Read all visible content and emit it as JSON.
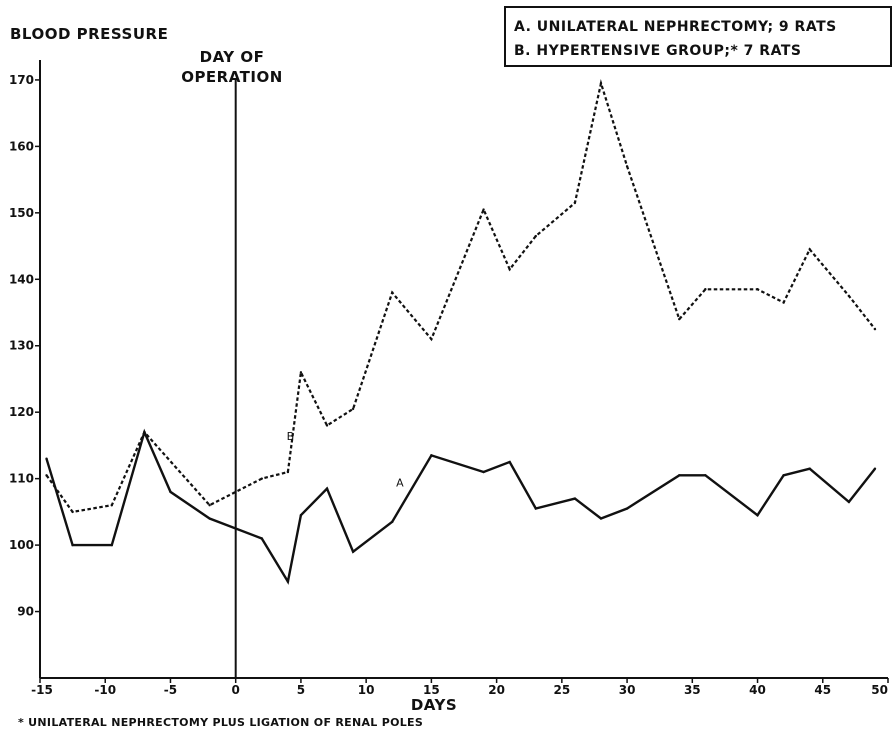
{
  "chart_data": {
    "type": "line",
    "ylabel": "BLOOD PRESSURE",
    "xlabel": "DAYS",
    "xlim": [
      -15,
      50
    ],
    "ylim": [
      80,
      173
    ],
    "x_ticks": [
      -15,
      -10,
      -5,
      0,
      5,
      10,
      15,
      20,
      25,
      30,
      35,
      40,
      45,
      50
    ],
    "x_tick_labels": [
      "-15",
      "-10",
      "-5",
      "0",
      "5",
      "10",
      "15",
      "20",
      "25",
      "30",
      "35",
      "40",
      "45",
      "50"
    ],
    "y_ticks": [
      90,
      100,
      110,
      120,
      130,
      140,
      150,
      160,
      170
    ],
    "y_tick_labels": [
      "90",
      "100",
      "110",
      "120",
      "130",
      "140",
      "150",
      "160",
      "170"
    ],
    "operation_day": 0,
    "operation_label": [
      "DAY OF",
      "OPERATION"
    ],
    "legend": {
      "position": "top-right",
      "entries": [
        {
          "text": "A. UNILATERAL NEPHRECTOMY; 9 RATS"
        },
        {
          "text": "B. HYPERTENSIVE GROUP;* 7 RATS"
        }
      ]
    },
    "series": [
      {
        "key": "A",
        "marker_label": "A",
        "marker_at": [
          12.3,
          108.8
        ],
        "style": "solid",
        "color": "#111111",
        "x": [
          -14.5,
          -12.5,
          -9.5,
          -7,
          -5,
          -2,
          2,
          4,
          5,
          7,
          9,
          12,
          15,
          19,
          21,
          23,
          26,
          28,
          30,
          34,
          36,
          40,
          42,
          44,
          47,
          49
        ],
        "y": [
          113,
          100,
          100,
          117,
          108,
          104,
          101,
          94.5,
          104.5,
          108.5,
          99,
          103.5,
          113.5,
          111,
          112.5,
          105.5,
          107,
          104,
          105.5,
          110.5,
          110.5,
          104.5,
          110.5,
          111.5,
          106.5,
          111.5
        ]
      },
      {
        "key": "B",
        "marker_label": "B",
        "marker_at": [
          3.9,
          115.8
        ],
        "style": "dashed",
        "color": "#111111",
        "x": [
          -14.5,
          -12.5,
          -9.5,
          -7,
          -2,
          2,
          4,
          5,
          7,
          9,
          12,
          15,
          19,
          21,
          23,
          26,
          28,
          30,
          34,
          36,
          40,
          42,
          44,
          47,
          49
        ],
        "y": [
          110.5,
          105,
          106,
          117,
          106,
          110,
          111,
          126,
          118,
          120.5,
          138,
          131,
          150.5,
          141.5,
          146.5,
          151.5,
          169.5,
          157,
          134,
          138.5,
          138.5,
          136.5,
          144.5,
          137.5,
          132.5
        ]
      }
    ]
  },
  "footnote": "* UNILATERAL NEPHRECTOMY PLUS LIGATION OF RENAL POLES"
}
